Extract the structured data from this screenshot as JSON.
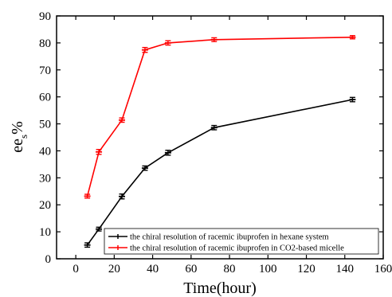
{
  "chart_data": {
    "type": "line",
    "xlabel": "Time(hour)",
    "ylabel": "ee",
    "ylabel_subscript": "s",
    "ylabel_suffix": "%",
    "xlim": [
      -10,
      160
    ],
    "ylim": [
      0,
      90
    ],
    "xticks": [
      0,
      20,
      40,
      60,
      80,
      100,
      120,
      140,
      160
    ],
    "yticks": [
      0,
      10,
      20,
      30,
      40,
      50,
      60,
      70,
      80,
      90
    ],
    "grid": false,
    "legend_position": "bottom-right",
    "series": [
      {
        "name": "the chiral resolution of racemic ibuprofen in hexane system",
        "color": "#000000",
        "x": [
          6,
          12,
          24,
          36,
          48,
          72,
          144
        ],
        "y": [
          5.1,
          11.0,
          23.1,
          33.6,
          39.3,
          48.6,
          59.0
        ],
        "yerr": [
          0.8,
          0.7,
          0.9,
          0.8,
          0.9,
          0.8,
          0.8
        ]
      },
      {
        "name": "the chiral resolution of racemic ibuprofen in CO2-based micelle",
        "color": "#ff0000",
        "x": [
          6,
          12,
          24,
          36,
          48,
          72,
          144
        ],
        "y": [
          23.2,
          39.6,
          51.4,
          77.4,
          80.0,
          81.2,
          82.1
        ],
        "yerr": [
          0.7,
          0.9,
          0.8,
          0.9,
          0.8,
          0.7,
          0.6
        ]
      }
    ]
  }
}
